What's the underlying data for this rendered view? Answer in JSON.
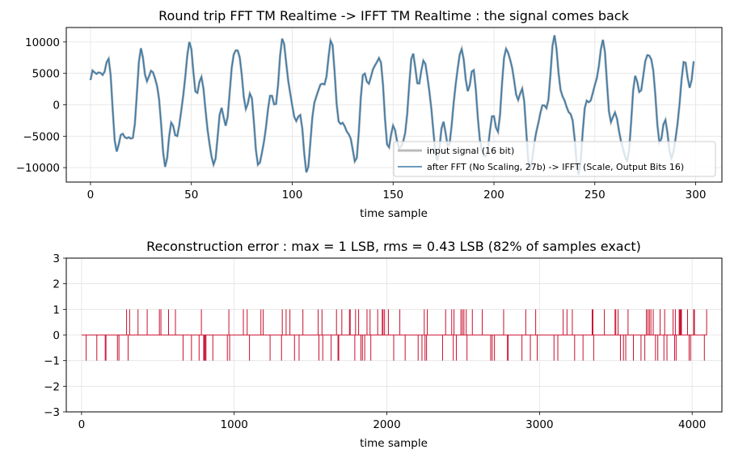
{
  "chart_data": [
    {
      "type": "line",
      "title": "Round trip FFT TM Realtime -> IFFT TM Realtime : the signal comes back",
      "xlabel": "time sample",
      "ylabel": "",
      "xlim": [
        -12,
        313
      ],
      "ylim": [
        -12300,
        12300
      ],
      "xticks": [
        0,
        50,
        100,
        150,
        200,
        250,
        300
      ],
      "yticks": [
        10000,
        5000,
        0,
        -5000,
        -10000
      ],
      "ytick_labels": [
        "10000",
        "5000",
        "0",
        "−5000",
        "−10000"
      ],
      "grid": true,
      "legend_position": "lower-right",
      "series": [
        {
          "name": "input signal (16 bit)",
          "color": "#bbbbbb",
          "generator": {
            "kind": "sum_of_sines",
            "n": 300,
            "components": [
              {
                "period": 22.5,
                "amp": 7000,
                "phase": 0.1
              },
              {
                "period": 7.9,
                "amp": 3000,
                "phase": 0.8
              },
              {
                "period": 5.0,
                "amp": 1200,
                "phase": 2.0
              }
            ]
          }
        },
        {
          "name": "after FFT (No Scaling, 27b) -> IFFT (Scale, Output Bits 16)",
          "color": "#3b7ba9",
          "generator": "same_as_input"
        }
      ]
    },
    {
      "type": "bar",
      "title": "Reconstruction error : max = 1 LSB, rms = 0.43 LSB (82% of samples exact)",
      "xlabel": "time sample",
      "ylabel": "",
      "xlim": [
        -100,
        4195
      ],
      "ylim": [
        -3,
        3
      ],
      "xticks": [
        0,
        1000,
        2000,
        3000,
        4000
      ],
      "yticks": [
        3,
        2,
        1,
        0,
        -1,
        -2,
        -3
      ],
      "ytick_labels": [
        "3",
        "2",
        "1",
        "0",
        "−1",
        "−2",
        "−3"
      ],
      "grid": true,
      "color": "#c8102e",
      "n_samples": 4096,
      "values_summary": {
        "max": 1,
        "rms": 0.43,
        "exact_fraction": 0.82
      }
    }
  ]
}
